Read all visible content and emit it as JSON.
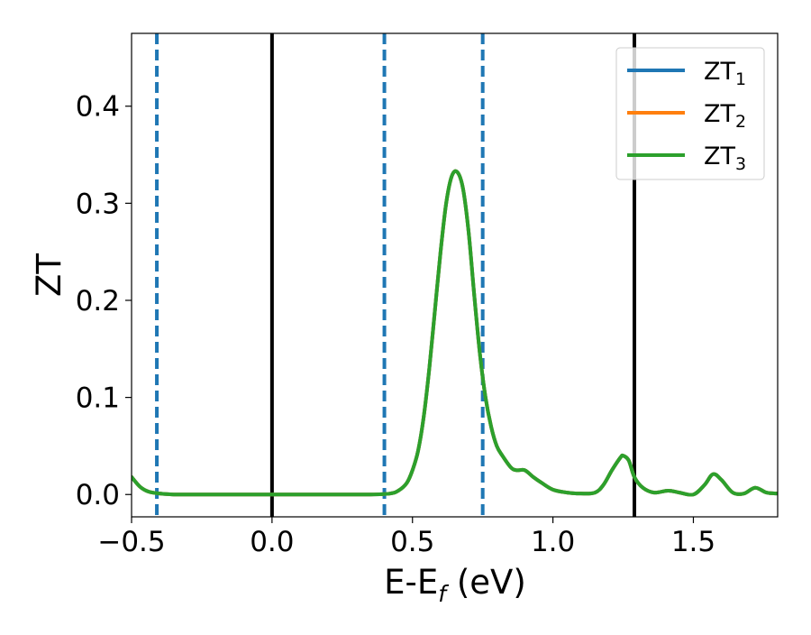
{
  "chart_data": {
    "type": "line",
    "title": "",
    "xlabel": "E-E",
    "xlabel_subscript": "f",
    "xlabel_unit": " (eV)",
    "ylabel": "ZT",
    "xlim": [
      -0.5,
      1.8
    ],
    "ylim": [
      -0.023,
      0.475
    ],
    "x_ticks": [
      -0.5,
      0.0,
      0.5,
      1.0,
      1.5
    ],
    "x_tick_labels": [
      "−0.5",
      "0.0",
      "0.5",
      "1.0",
      "1.5"
    ],
    "y_ticks": [
      0.0,
      0.1,
      0.2,
      0.3,
      0.4
    ],
    "y_tick_labels": [
      "0.0",
      "0.1",
      "0.2",
      "0.3",
      "0.4"
    ],
    "grid": false,
    "legend_position": "top-right",
    "series": [
      {
        "name": "ZT",
        "subscript": "1",
        "color": "#1f77b4",
        "x": [
          -0.5,
          -0.47,
          -0.44,
          -0.4,
          -0.35,
          -0.3,
          -0.2,
          0.0,
          0.2,
          0.35,
          0.42,
          0.45,
          0.48,
          0.5,
          0.52,
          0.54,
          0.56,
          0.58,
          0.6,
          0.62,
          0.64,
          0.66,
          0.68,
          0.7,
          0.72,
          0.74,
          0.76,
          0.78,
          0.8,
          0.82,
          0.85,
          0.87,
          0.9,
          0.93,
          0.96,
          1.0,
          1.05,
          1.1,
          1.15,
          1.18,
          1.21,
          1.24,
          1.25,
          1.27,
          1.29,
          1.32,
          1.36,
          1.41,
          1.45,
          1.5,
          1.54,
          1.57,
          1.6,
          1.64,
          1.68,
          1.72,
          1.76,
          1.8
        ],
        "values": [
          0.018,
          0.008,
          0.003,
          0.001,
          0.0,
          0.0,
          0.0,
          0.0,
          0.0,
          0.0,
          0.001,
          0.004,
          0.012,
          0.025,
          0.045,
          0.08,
          0.13,
          0.19,
          0.25,
          0.3,
          0.328,
          0.332,
          0.315,
          0.27,
          0.205,
          0.145,
          0.1,
          0.07,
          0.05,
          0.04,
          0.028,
          0.025,
          0.025,
          0.018,
          0.012,
          0.005,
          0.002,
          0.001,
          0.002,
          0.01,
          0.025,
          0.038,
          0.04,
          0.035,
          0.018,
          0.007,
          0.002,
          0.004,
          0.002,
          0.0,
          0.01,
          0.021,
          0.015,
          0.002,
          0.001,
          0.007,
          0.002,
          0.001
        ]
      },
      {
        "name": "ZT",
        "subscript": "2",
        "color": "#ff7f0e",
        "x": [
          -0.5,
          -0.47,
          -0.44,
          -0.4,
          -0.35,
          -0.3,
          -0.2,
          0.0,
          0.2,
          0.35,
          0.42,
          0.45,
          0.48,
          0.5,
          0.52,
          0.54,
          0.56,
          0.58,
          0.6,
          0.62,
          0.64,
          0.66,
          0.68,
          0.7,
          0.72,
          0.74,
          0.76,
          0.78,
          0.8,
          0.82,
          0.85,
          0.87,
          0.9,
          0.93,
          0.96,
          1.0,
          1.05,
          1.1,
          1.15,
          1.18,
          1.21,
          1.24,
          1.25,
          1.27,
          1.29,
          1.32,
          1.36,
          1.41,
          1.45,
          1.5,
          1.54,
          1.57,
          1.6,
          1.64,
          1.68,
          1.72,
          1.76,
          1.8
        ],
        "values": [
          0.018,
          0.008,
          0.003,
          0.001,
          0.0,
          0.0,
          0.0,
          0.0,
          0.0,
          0.0,
          0.001,
          0.004,
          0.012,
          0.025,
          0.045,
          0.08,
          0.13,
          0.19,
          0.25,
          0.3,
          0.328,
          0.332,
          0.315,
          0.27,
          0.205,
          0.145,
          0.1,
          0.07,
          0.05,
          0.04,
          0.028,
          0.025,
          0.025,
          0.018,
          0.012,
          0.005,
          0.002,
          0.001,
          0.002,
          0.01,
          0.025,
          0.038,
          0.04,
          0.035,
          0.018,
          0.007,
          0.002,
          0.004,
          0.002,
          0.0,
          0.01,
          0.021,
          0.015,
          0.002,
          0.001,
          0.007,
          0.002,
          0.001
        ]
      },
      {
        "name": "ZT",
        "subscript": "3",
        "color": "#2ca02c",
        "x": [
          -0.5,
          -0.47,
          -0.44,
          -0.4,
          -0.35,
          -0.3,
          -0.2,
          0.0,
          0.2,
          0.35,
          0.42,
          0.45,
          0.48,
          0.5,
          0.52,
          0.54,
          0.56,
          0.58,
          0.6,
          0.62,
          0.64,
          0.66,
          0.68,
          0.7,
          0.72,
          0.74,
          0.76,
          0.78,
          0.8,
          0.82,
          0.85,
          0.87,
          0.9,
          0.93,
          0.96,
          1.0,
          1.05,
          1.1,
          1.15,
          1.18,
          1.21,
          1.24,
          1.25,
          1.27,
          1.29,
          1.32,
          1.36,
          1.41,
          1.45,
          1.5,
          1.54,
          1.57,
          1.6,
          1.64,
          1.68,
          1.72,
          1.76,
          1.8
        ],
        "values": [
          0.018,
          0.008,
          0.003,
          0.001,
          0.0,
          0.0,
          0.0,
          0.0,
          0.0,
          0.0,
          0.001,
          0.004,
          0.012,
          0.025,
          0.045,
          0.08,
          0.13,
          0.19,
          0.25,
          0.3,
          0.328,
          0.332,
          0.315,
          0.27,
          0.205,
          0.145,
          0.1,
          0.07,
          0.05,
          0.04,
          0.028,
          0.025,
          0.025,
          0.018,
          0.012,
          0.005,
          0.002,
          0.001,
          0.002,
          0.01,
          0.025,
          0.038,
          0.04,
          0.035,
          0.018,
          0.007,
          0.002,
          0.004,
          0.002,
          0.0,
          0.01,
          0.021,
          0.015,
          0.002,
          0.001,
          0.007,
          0.002,
          0.001
        ]
      }
    ],
    "vertical_lines": [
      {
        "x": -0.41,
        "style": "dashed",
        "color": "#1f77b4"
      },
      {
        "x": 0.0,
        "style": "solid",
        "color": "#000000"
      },
      {
        "x": 0.4,
        "style": "dashed",
        "color": "#1f77b4"
      },
      {
        "x": 0.75,
        "style": "dashed",
        "color": "#1f77b4"
      },
      {
        "x": 1.29,
        "style": "solid",
        "color": "#000000"
      }
    ]
  }
}
